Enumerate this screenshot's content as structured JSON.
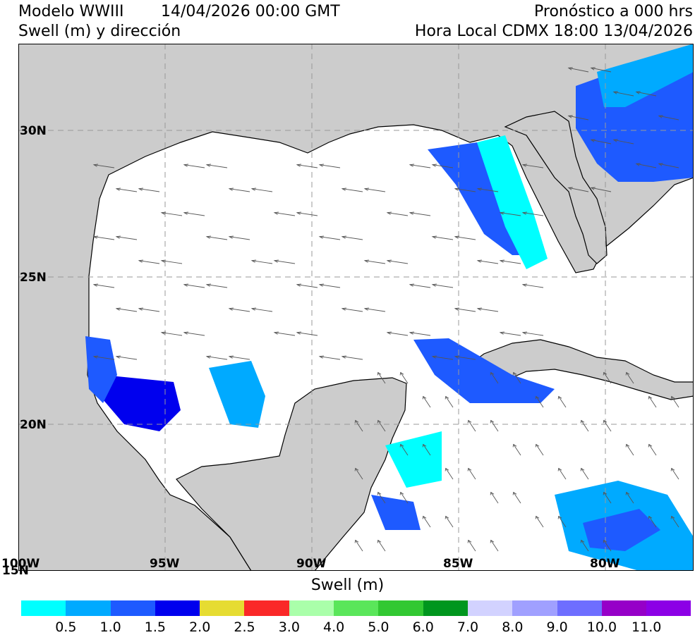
{
  "header": {
    "model": "Modelo WWIII",
    "datetime": "14/04/2026 00:00 GMT",
    "variable": "Swell (m) y dirección",
    "forecast": "Pronóstico a 000 hrs",
    "local_time": "Hora Local CDMX 18:00 13/04/2026"
  },
  "map": {
    "latitudes": [
      "30N",
      "25N",
      "20N",
      "15N"
    ],
    "longitudes": [
      "100W",
      "95W",
      "90W",
      "85W",
      "80W"
    ],
    "colors": {
      "land": "#cccccc",
      "water": "#ffffff",
      "grid": "#999999",
      "coast": "#000000",
      "arrow": "#555555"
    }
  },
  "colorbar": {
    "title": "Swell (m)",
    "colors": [
      "#00ffff",
      "#00aaff",
      "#1e5aff",
      "#0000ee",
      "#e6dc32",
      "#fa2828",
      "#aaffaa",
      "#5ae65a",
      "#32c832",
      "#00961e",
      "#d2d2ff",
      "#a0a0ff",
      "#6e6eff",
      "#9600c8",
      "#8c00e6"
    ],
    "ticks": [
      "0.5",
      "1.0",
      "1.5",
      "2.0",
      "2.5",
      "3.0",
      "4.0",
      "5.0",
      "6.0",
      "7.0",
      "8.0",
      "9.0",
      "10.0",
      "11.0"
    ]
  }
}
